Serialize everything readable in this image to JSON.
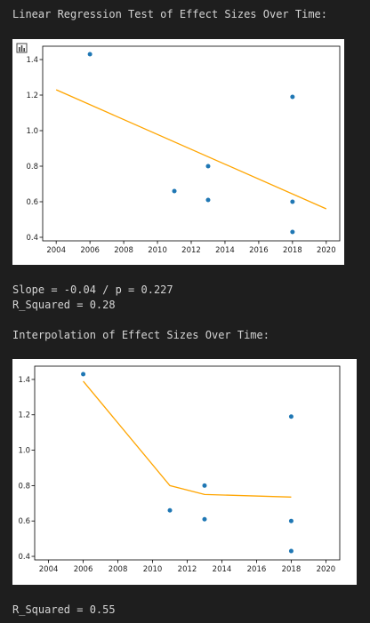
{
  "output": {
    "heading1": "Linear Regression Test of Effect Sizes Over Time:",
    "stats1_line1": "Slope = -0.04 / p = 0.227",
    "stats1_line2": "R_Squared = 0.28",
    "heading2": "Interpolation of Effect Sizes Over Time:",
    "stats2": "R_Squared = 0.55"
  },
  "toolbar_icon": "bar-chart-icon",
  "colors": {
    "points": "#1f77b4",
    "line": "#ffa500",
    "background": "#1e1e1e"
  },
  "chart_data": [
    {
      "type": "scatter",
      "title": "",
      "xlabel": "",
      "ylabel": "",
      "xlim": [
        2003.2,
        2020.8
      ],
      "ylim": [
        0.38,
        1.475
      ],
      "x_ticks": [
        2004,
        2006,
        2008,
        2010,
        2012,
        2014,
        2016,
        2018,
        2020
      ],
      "y_ticks": [
        0.4,
        0.6,
        0.8,
        1.0,
        1.2,
        1.4
      ],
      "x_tick_labels": [
        "2004",
        "2006",
        "2008",
        "2010",
        "2012",
        "2014",
        "2016",
        "2018",
        "2020"
      ],
      "y_tick_labels": [
        "0.4",
        "0.6",
        "0.8",
        "1.0",
        "1.2",
        "1.4"
      ],
      "points": [
        {
          "x": 2006,
          "y": 1.43
        },
        {
          "x": 2011,
          "y": 0.66
        },
        {
          "x": 2013,
          "y": 0.8
        },
        {
          "x": 2013,
          "y": 0.61
        },
        {
          "x": 2018,
          "y": 1.19
        },
        {
          "x": 2018,
          "y": 0.6
        },
        {
          "x": 2018,
          "y": 0.43
        }
      ],
      "line": [
        {
          "x": 2004,
          "y": 1.23
        },
        {
          "x": 2020,
          "y": 0.56
        }
      ],
      "grid": false
    },
    {
      "type": "scatter",
      "title": "",
      "xlabel": "",
      "ylabel": "",
      "xlim": [
        2003.2,
        2020.8
      ],
      "ylim": [
        0.38,
        1.475
      ],
      "x_ticks": [
        2004,
        2006,
        2008,
        2010,
        2012,
        2014,
        2016,
        2018,
        2020
      ],
      "y_ticks": [
        0.4,
        0.6,
        0.8,
        1.0,
        1.2,
        1.4
      ],
      "x_tick_labels": [
        "2004",
        "2006",
        "2008",
        "2010",
        "2012",
        "2014",
        "2016",
        "2018",
        "2020"
      ],
      "y_tick_labels": [
        "0.4",
        "0.6",
        "0.8",
        "1.0",
        "1.2",
        "1.4"
      ],
      "points": [
        {
          "x": 2006,
          "y": 1.43
        },
        {
          "x": 2011,
          "y": 0.66
        },
        {
          "x": 2013,
          "y": 0.8
        },
        {
          "x": 2013,
          "y": 0.61
        },
        {
          "x": 2018,
          "y": 1.19
        },
        {
          "x": 2018,
          "y": 0.6
        },
        {
          "x": 2018,
          "y": 0.43
        }
      ],
      "line": [
        {
          "x": 2006,
          "y": 1.39
        },
        {
          "x": 2011,
          "y": 0.8
        },
        {
          "x": 2013,
          "y": 0.75
        },
        {
          "x": 2018,
          "y": 0.735
        }
      ],
      "grid": false
    }
  ]
}
